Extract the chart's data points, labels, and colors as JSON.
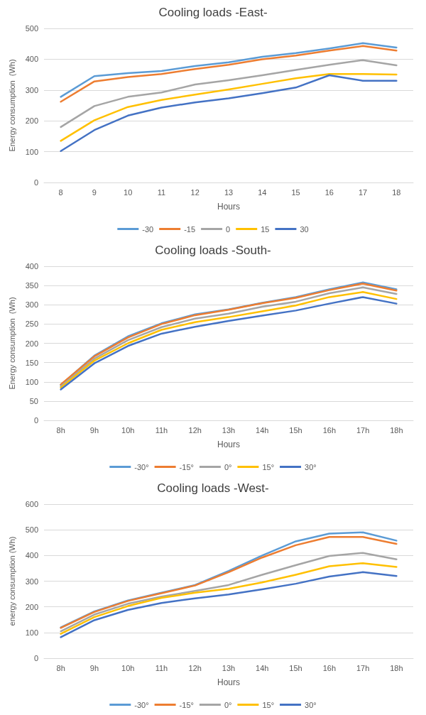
{
  "chart_data": [
    {
      "type": "line",
      "title": "Cooling loads -East-",
      "xlabel": "Hours",
      "ylabel": "Energy consumption  (Wh)",
      "categories": [
        "8",
        "9",
        "10",
        "11",
        "12",
        "13",
        "14",
        "15",
        "16",
        "17",
        "18"
      ],
      "ylim": [
        0,
        500
      ],
      "yticks": [
        0,
        100,
        200,
        300,
        400,
        500
      ],
      "grid": "y",
      "legend": "bottom",
      "marker": "none",
      "series": [
        {
          "name": "-30",
          "color": "#5b9bd5",
          "values": [
            278,
            345,
            355,
            362,
            378,
            390,
            408,
            420,
            435,
            452,
            438
          ]
        },
        {
          "name": "-15",
          "color": "#ed7d31",
          "values": [
            262,
            328,
            342,
            352,
            368,
            382,
            400,
            412,
            428,
            443,
            428
          ]
        },
        {
          "name": "0",
          "color": "#a5a5a5",
          "values": [
            180,
            248,
            278,
            292,
            318,
            332,
            348,
            365,
            382,
            397,
            380
          ]
        },
        {
          "name": "15",
          "color": "#ffc000",
          "values": [
            135,
            202,
            245,
            268,
            285,
            302,
            320,
            338,
            352,
            352,
            350
          ]
        },
        {
          "name": "30",
          "color": "#4472c4",
          "values": [
            102,
            170,
            217,
            243,
            260,
            273,
            290,
            308,
            348,
            330,
            330
          ]
        }
      ]
    },
    {
      "type": "line",
      "title": "Cooling loads -South-",
      "xlabel": "Hours",
      "ylabel": "Energy consumption  (Wh)",
      "categories": [
        "8h",
        "9h",
        "10h",
        "11h",
        "12h",
        "13h",
        "14h",
        "15h",
        "16h",
        "17h",
        "18h"
      ],
      "ylim": [
        0,
        400
      ],
      "yticks": [
        0,
        50,
        100,
        150,
        200,
        250,
        300,
        350,
        400
      ],
      "grid": "y",
      "legend": "bottom",
      "marker": "none",
      "series": [
        {
          "name": "-30°",
          "color": "#5b9bd5",
          "values": [
            92,
            168,
            218,
            252,
            275,
            288,
            305,
            320,
            340,
            358,
            340
          ]
        },
        {
          "name": "-15°",
          "color": "#ed7d31",
          "values": [
            93,
            166,
            215,
            250,
            273,
            287,
            304,
            318,
            338,
            355,
            337
          ]
        },
        {
          "name": "0°",
          "color": "#a5a5a5",
          "values": [
            88,
            160,
            208,
            242,
            264,
            277,
            295,
            308,
            330,
            345,
            328
          ]
        },
        {
          "name": "15°",
          "color": "#ffc000",
          "values": [
            85,
            155,
            200,
            235,
            255,
            268,
            283,
            298,
            320,
            333,
            315
          ]
        },
        {
          "name": "30°",
          "color": "#4472c4",
          "values": [
            80,
            148,
            193,
            225,
            243,
            258,
            272,
            285,
            303,
            320,
            303
          ]
        }
      ]
    },
    {
      "type": "line",
      "title": "Cooling loads -West-",
      "xlabel": "Hours",
      "ylabel": "energy consumption (Wh)",
      "categories": [
        "8h",
        "9h",
        "10h",
        "11h",
        "12h",
        "13h",
        "14h",
        "15h",
        "16h",
        "17h",
        "18h"
      ],
      "ylim": [
        0,
        600
      ],
      "yticks": [
        0,
        100,
        200,
        300,
        400,
        500,
        600
      ],
      "grid": "y",
      "legend": "bottom",
      "marker": "none",
      "series": [
        {
          "name": "-30°",
          "color": "#5b9bd5",
          "values": [
            120,
            182,
            225,
            255,
            285,
            340,
            400,
            455,
            485,
            490,
            458
          ]
        },
        {
          "name": "-15°",
          "color": "#ed7d31",
          "values": [
            118,
            180,
            223,
            253,
            283,
            335,
            392,
            440,
            472,
            472,
            445
          ]
        },
        {
          "name": "0°",
          "color": "#a5a5a5",
          "values": [
            105,
            170,
            212,
            240,
            262,
            285,
            325,
            362,
            398,
            410,
            385
          ]
        },
        {
          "name": "15°",
          "color": "#ffc000",
          "values": [
            95,
            160,
            203,
            235,
            255,
            270,
            295,
            325,
            358,
            370,
            355
          ]
        },
        {
          "name": "30°",
          "color": "#4472c4",
          "values": [
            82,
            148,
            188,
            215,
            233,
            248,
            268,
            290,
            318,
            335,
            320
          ]
        }
      ]
    }
  ]
}
